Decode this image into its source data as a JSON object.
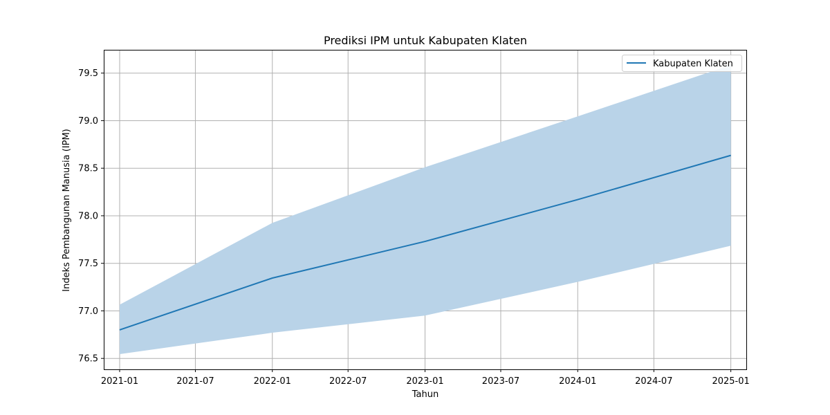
{
  "chart_data": {
    "type": "area",
    "title": "Prediksi IPM untuk Kabupaten Klaten",
    "xlabel": "Tahun",
    "ylabel": "Indeks Pembangunan Manusia (IPM)",
    "x": [
      "2021-01-01",
      "2022-01-01",
      "2023-01-01",
      "2024-01-01",
      "2025-01-01"
    ],
    "series": [
      {
        "name": "Kabupaten Klaten",
        "values": [
          76.8,
          77.345,
          77.73,
          78.17,
          78.635
        ],
        "lower": [
          76.545,
          76.77,
          76.95,
          77.305,
          77.685
        ],
        "upper": [
          77.065,
          77.925,
          78.51,
          79.045,
          79.585
        ],
        "line_color": "#1f77b4",
        "band_color": "#b9d3e8"
      }
    ],
    "xticks": [
      "2021-01",
      "2021-07",
      "2022-01",
      "2022-07",
      "2023-01",
      "2023-07",
      "2024-01",
      "2024-07",
      "2025-01"
    ],
    "yticks": [
      "76.5",
      "77.0",
      "77.5",
      "78.0",
      "78.5",
      "79.0",
      "79.5"
    ],
    "xlim": [
      "2020-11-24",
      "2025-02-07"
    ],
    "ylim": [
      76.385,
      79.745
    ],
    "grid": true,
    "legend_position": "top-right"
  }
}
